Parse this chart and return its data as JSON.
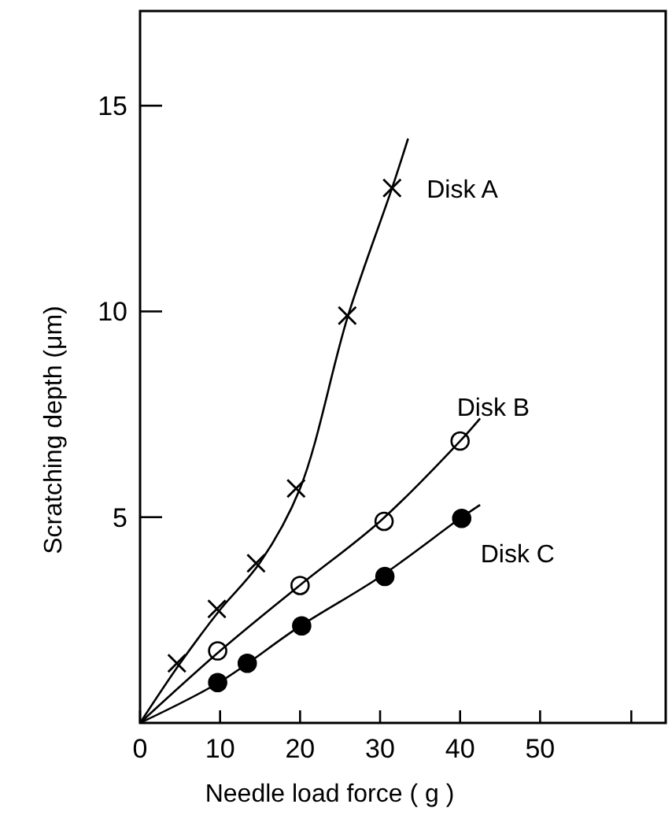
{
  "chart_data": {
    "type": "scatter",
    "xlabel": "Needle load force ( g )",
    "ylabel": "Scratching depth (μm)",
    "xlim": [
      0,
      65.7
    ],
    "ylim": [
      0,
      17.3
    ],
    "xticks": [
      0,
      10,
      20,
      30,
      40,
      50,
      {
        "value": 61.4,
        "label": null
      }
    ],
    "yticks": [
      5,
      10,
      15
    ],
    "grid": false,
    "series": [
      {
        "name": "Disk A",
        "marker": "cross",
        "color": "#000000",
        "x": [
          4.6,
          9.6,
          14.5,
          19.5,
          25.9,
          31.5
        ],
        "values": [
          1.45,
          2.77,
          3.88,
          5.7,
          9.9,
          13.0
        ]
      },
      {
        "name": "Disk B",
        "marker": "circle",
        "color": "#ffffff",
        "x": [
          9.7,
          20,
          30.5,
          40
        ],
        "values": [
          1.75,
          3.34,
          4.9,
          6.85
        ]
      },
      {
        "name": "Disk C",
        "marker": "circle",
        "color": "#000000",
        "x": [
          9.7,
          13.4,
          20.2,
          30.6,
          40.2
        ],
        "values": [
          0.98,
          1.45,
          2.36,
          3.56,
          4.97
        ]
      },
      {
        "type": "line",
        "line_style": "solid",
        "marker": "none",
        "color": "#000000",
        "x": [
          0,
          5,
          10,
          15,
          20,
          26,
          31.5,
          33.5
        ],
        "values": [
          0,
          1.45,
          2.75,
          3.9,
          5.7,
          9.9,
          13.0,
          14.2
        ]
      },
      {
        "type": "line",
        "line_style": "solid",
        "marker": "none",
        "color": "#000000",
        "x": [
          0,
          10,
          20,
          30,
          40,
          42.5
        ],
        "values": [
          0,
          1.75,
          3.35,
          4.9,
          6.85,
          7.4
        ]
      },
      {
        "type": "line",
        "line_style": "solid",
        "marker": "none",
        "color": "#000000",
        "x": [
          0,
          10,
          20,
          30,
          40,
          42.5
        ],
        "values": [
          0,
          1.0,
          2.35,
          3.55,
          4.97,
          5.3
        ]
      }
    ]
  }
}
